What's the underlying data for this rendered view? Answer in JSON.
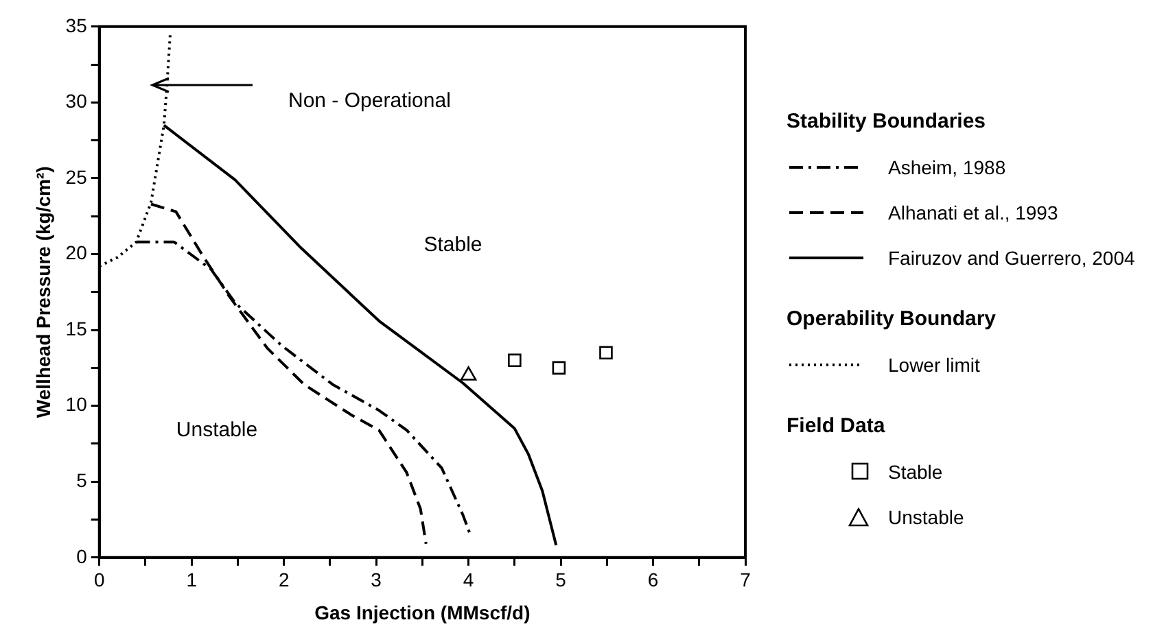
{
  "chart_data": {
    "type": "line",
    "xlabel": "Gas Injection (MMscf/d)",
    "ylabel": "Wellhead Pressure (kg/cm²)",
    "xlim": [
      0,
      7
    ],
    "ylim": [
      0,
      35
    ],
    "xticks": [
      0,
      {
        "value": 0.5,
        "label": null
      },
      1,
      {
        "value": 1.5,
        "label": null
      },
      2,
      {
        "value": 2.5,
        "label": null
      },
      3,
      {
        "value": 3.5,
        "label": null
      },
      4,
      {
        "value": 4.5,
        "label": null
      },
      5,
      {
        "value": 5.5,
        "label": null
      },
      6,
      {
        "value": 6.5,
        "label": null
      },
      7
    ],
    "yticks": [
      0,
      {
        "value": 2.5,
        "label": null
      },
      5,
      {
        "value": 7.5,
        "label": null
      },
      10,
      {
        "value": 12.5,
        "label": null
      },
      15,
      {
        "value": 17.5,
        "label": null
      },
      20,
      {
        "value": 22.5,
        "label": null
      },
      25,
      {
        "value": 27.5,
        "label": null
      },
      30,
      {
        "value": 32.5,
        "label": null
      },
      35
    ],
    "grid": false,
    "legend": "right",
    "marker": "none",
    "series": [
      {
        "name": "Asheim, 1988",
        "type": "line",
        "line_style": "dashdot",
        "color": "#000000",
        "x": [
          0.4,
          0.81,
          1.21,
          1.47,
          1.97,
          2.53,
          3.03,
          3.33,
          3.71,
          3.94,
          4.02
        ],
        "values": [
          20.8,
          20.8,
          19.0,
          16.8,
          14.0,
          11.4,
          9.7,
          8.4,
          5.9,
          2.8,
          1.5
        ]
      },
      {
        "name": "Alhanati et al., 1993",
        "type": "line",
        "line_style": "dashed",
        "color": "#000000",
        "x": [
          0.56,
          0.83,
          1.11,
          1.41,
          1.82,
          2.22,
          2.73,
          3.03,
          3.33,
          3.48,
          3.54
        ],
        "values": [
          23.3,
          22.8,
          20.0,
          17.2,
          13.8,
          11.4,
          9.4,
          8.4,
          5.6,
          3.2,
          0.9
        ]
      },
      {
        "name": "Fairuzov and Guerrero, 2004",
        "type": "line",
        "line_style": "solid",
        "color": "#000000",
        "x": [
          0.7,
          1.47,
          2.17,
          3.03,
          3.94,
          4.5,
          4.65,
          4.8,
          4.95
        ],
        "values": [
          28.5,
          24.9,
          20.5,
          15.6,
          11.5,
          8.5,
          6.8,
          4.4,
          0.8
        ]
      },
      {
        "name": "Lower limit",
        "type": "line",
        "line_style": "dotted",
        "color": "#000000",
        "x": [
          0,
          0.2,
          0.4,
          0.56,
          0.7,
          0.73,
          0.77
        ],
        "values": [
          19.2,
          19.8,
          20.8,
          23.4,
          28.5,
          30.9,
          34.7
        ]
      },
      {
        "name": "Stable",
        "type": "scatter",
        "marker": "square",
        "color": "#000000",
        "x": [
          4.5,
          4.98,
          5.49
        ],
        "values": [
          13,
          12.5,
          13.5
        ]
      },
      {
        "name": "Unstable",
        "type": "scatter",
        "marker": "triangle",
        "color": "#000000",
        "x": [
          4
        ],
        "values": [
          12
        ]
      }
    ],
    "annotations": [
      "Stability Boundaries",
      "Operability Boundary",
      "Field Data",
      "Non - Operational",
      "Stable",
      "Unstable"
    ]
  }
}
